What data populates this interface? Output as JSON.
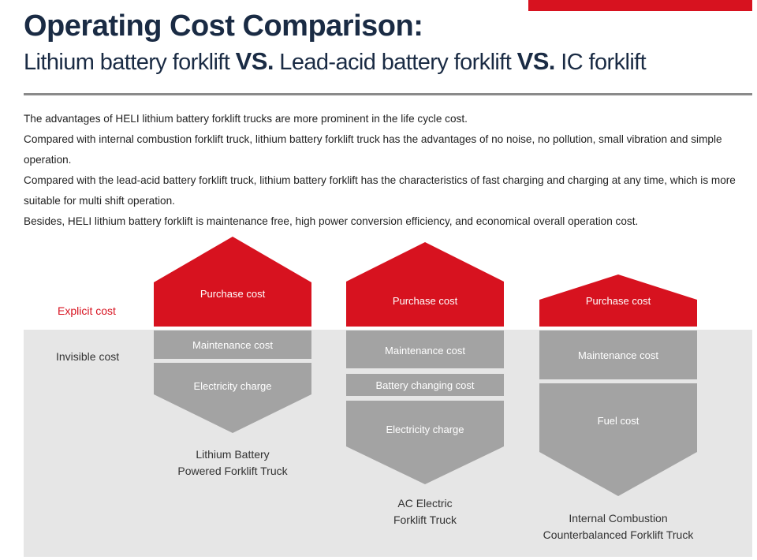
{
  "header": {
    "title": "Operating Cost Comparison:",
    "subtitle": {
      "part1": "Lithium battery forklift ",
      "vs1": "VS.",
      "part2": " Lead-acid battery forklift ",
      "vs2": "VS.",
      "part3": " IC forklift"
    }
  },
  "intro": [
    "The advantages of HELI lithium battery forklift trucks are more prominent in the life cycle cost.",
    "Compared with internal combustion forklift truck, lithium battery forklift truck has the advantages of no noise, no pollution, small vibration and simple operation.",
    "Compared with the lead-acid battery forklift truck, lithium battery forklift has the characteristics of fast charging and charging at any time, which is more suitable for multi shift operation.",
    "Besides, HELI lithium battery forklift is maintenance free, high power conversion efficiency, and economical overall operation cost."
  ],
  "labels": {
    "explicit": "Explicit cost",
    "invisible": "Invisible cost"
  },
  "columns": [
    {
      "purchase": "Purchase cost",
      "segments": [
        "Maintenance cost",
        "Electricity charge"
      ],
      "caption": [
        "Lithium Battery",
        "Powered Forklift Truck"
      ]
    },
    {
      "purchase": "Purchase cost",
      "segments": [
        "Maintenance cost",
        "Battery changing cost",
        "Electricity charge"
      ],
      "caption": [
        "AC Electric",
        "Forklift Truck"
      ]
    },
    {
      "purchase": "Purchase cost",
      "segments": [
        "Maintenance cost",
        "Fuel cost"
      ],
      "caption": [
        "Internal Combustion",
        "Counterbalanced Forklift Truck"
      ]
    }
  ],
  "colors": {
    "explicit": "#d7121f",
    "invisible": "#a3a3a3",
    "title": "#1a2b44"
  }
}
